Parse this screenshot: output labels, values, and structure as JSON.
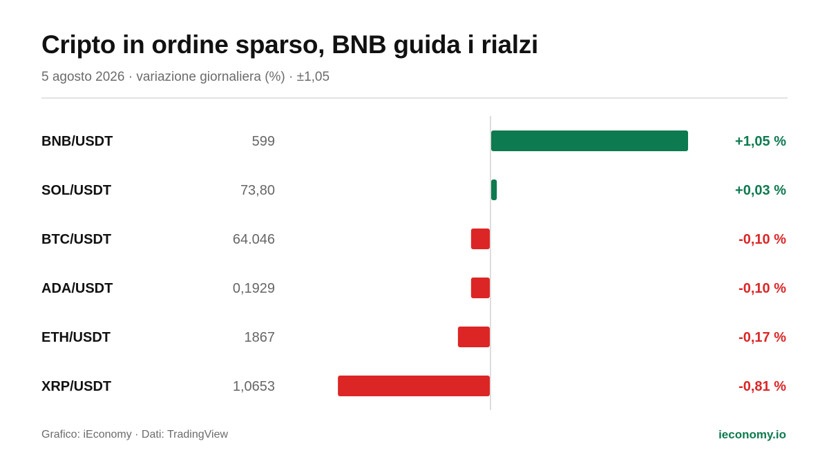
{
  "header": {
    "title": "Cripto in ordine sparso, BNB guida i rialzi",
    "subtitle": "5 agosto 2026 · variazione giornaliera (%) · ±1,05"
  },
  "footer": {
    "source": "Grafico: iEconomy · Dati: TradingView",
    "brand": "ieconomy.io"
  },
  "colors": {
    "positive": "#0e7a4f",
    "negative": "#dc2626",
    "axis": "#d0d0d0"
  },
  "chart_data": {
    "type": "bar",
    "orientation": "horizontal",
    "categories": [
      "BNB/USDT",
      "SOL/USDT",
      "BTC/USDT",
      "ADA/USDT",
      "ETH/USDT",
      "XRP/USDT"
    ],
    "prices": [
      "599",
      "73,80",
      "64.046",
      "0,1929",
      "1867",
      "1,0653"
    ],
    "values": [
      1.05,
      0.03,
      -0.1,
      -0.1,
      -0.17,
      -0.81
    ],
    "value_labels": [
      "+1,05 %",
      "+0,03 %",
      "-0,10 %",
      "-0,10 %",
      "-0,17 %",
      "-0,81 %"
    ],
    "xlim": [
      -1.05,
      1.05
    ],
    "grid": false
  }
}
